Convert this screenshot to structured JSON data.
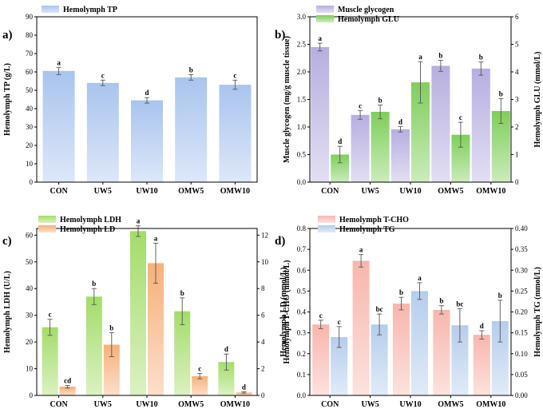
{
  "chart_data": [
    {
      "panel": "a)",
      "type": "bar",
      "categories": [
        "CON",
        "UW5",
        "UW10",
        "OMW5",
        "OMW10"
      ],
      "series": [
        {
          "name": "Hemolymph TP",
          "axis": "left",
          "color": "#a9c4ee",
          "values": [
            60.5,
            54,
            44.5,
            57,
            53
          ],
          "errors": [
            2,
            1.5,
            1.5,
            1.5,
            2.5
          ],
          "labels": [
            "a",
            "c",
            "d",
            "b",
            "c"
          ]
        }
      ],
      "ylabel": "Hemolymph TP (g/L)",
      "ylim": [
        0,
        90
      ],
      "yticks": [
        0,
        10,
        20,
        30,
        40,
        50,
        60,
        70,
        80,
        90
      ],
      "legend": "top-left"
    },
    {
      "panel": "b)",
      "type": "bar",
      "categories": [
        "CON",
        "UW5",
        "UW10",
        "OMW5",
        "OMW10"
      ],
      "series": [
        {
          "name": "Muscle glycogen",
          "axis": "left",
          "color": "#b7aee0",
          "values": [
            2.45,
            1.22,
            0.96,
            2.11,
            2.06
          ],
          "errors": [
            0.07,
            0.08,
            0.05,
            0.1,
            0.12
          ],
          "labels": [
            "a",
            "c",
            "d",
            "b",
            "b"
          ]
        },
        {
          "name": "Hemolymph GLU",
          "axis": "right",
          "color": "#7fce5a",
          "values": [
            1.0,
            2.55,
            3.62,
            1.72,
            2.58
          ],
          "errors": [
            0.3,
            0.25,
            0.75,
            0.45,
            0.45
          ],
          "labels": [
            "d",
            "b",
            "a",
            "c",
            "b"
          ]
        }
      ],
      "ylabel": "Muscle glycogen (mg/g muscle tissue)",
      "y2label": "Hemolymph GLU (mmol/L)",
      "ylim": [
        0,
        3.0
      ],
      "yticks": [
        0.0,
        0.5,
        1.0,
        1.5,
        2.0,
        2.5,
        3.0
      ],
      "y2lim": [
        0,
        6
      ],
      "y2ticks": [
        0,
        1,
        2,
        3,
        4,
        5,
        6
      ],
      "legend": "top-left"
    },
    {
      "panel": "c)",
      "type": "bar",
      "categories": [
        "CON",
        "UW5",
        "UW10",
        "OMW5",
        "OMW10"
      ],
      "series": [
        {
          "name": "Hemolymph LDH",
          "axis": "left",
          "color": "#a4dc6a",
          "values": [
            25.5,
            37,
            61.5,
            31.5,
            12.5
          ],
          "errors": [
            3,
            3,
            2,
            5,
            3
          ],
          "labels": [
            "c",
            "b",
            "a",
            "b",
            "d"
          ]
        },
        {
          "name": "Hemolymph LD",
          "axis": "right",
          "color": "#f7b07a",
          "values": [
            0.65,
            3.8,
            9.9,
            1.45,
            0.22
          ],
          "errors": [
            0.1,
            0.9,
            1.5,
            0.2,
            0.05
          ],
          "labels": [
            "cd",
            "b",
            "a",
            "c",
            "d"
          ]
        }
      ],
      "ylabel": "Hemolymph LDH (U/L)",
      "y2label": "Hemolymph LD (mmol/L)",
      "ylim": [
        0,
        62.5
      ],
      "yticks": [
        0,
        10,
        20,
        30,
        40,
        50,
        60
      ],
      "y2lim": [
        0,
        12.5
      ],
      "y2ticks": [
        0,
        2,
        4,
        6,
        8,
        10,
        12
      ],
      "legend": "top-left"
    },
    {
      "panel": "d)",
      "type": "bar",
      "categories": [
        "CON",
        "UW5",
        "UW10",
        "OMW5",
        "OMW10"
      ],
      "series": [
        {
          "name": "Hemolymph T-CHO",
          "axis": "left",
          "color": "#f7b6ad",
          "values": [
            0.34,
            0.645,
            0.44,
            0.41,
            0.29
          ],
          "errors": [
            0.02,
            0.03,
            0.03,
            0.02,
            0.02
          ],
          "labels": [
            "c",
            "a",
            "b",
            "b",
            "d"
          ]
        },
        {
          "name": "Hemolymph TG",
          "axis": "right",
          "color": "#b5cdec",
          "values": [
            0.14,
            0.17,
            0.25,
            0.168,
            0.178
          ],
          "errors": [
            0.025,
            0.025,
            0.02,
            0.04,
            0.05
          ],
          "labels": [
            "c",
            "bc",
            "a",
            "bc",
            "b"
          ]
        }
      ],
      "ylabel": "Hemolymph T-CHO (mmol/L)",
      "y2label": "Hemolymph TG (mmol/L)",
      "ylim": [
        0,
        0.8
      ],
      "yticks": [
        0.0,
        0.1,
        0.2,
        0.3,
        0.4,
        0.5,
        0.6,
        0.7,
        0.8
      ],
      "y2lim": [
        0,
        0.4
      ],
      "y2ticks": [
        0.0,
        0.05,
        0.1,
        0.15,
        0.2,
        0.25,
        0.3,
        0.35,
        0.4
      ],
      "legend": "top-left"
    }
  ]
}
